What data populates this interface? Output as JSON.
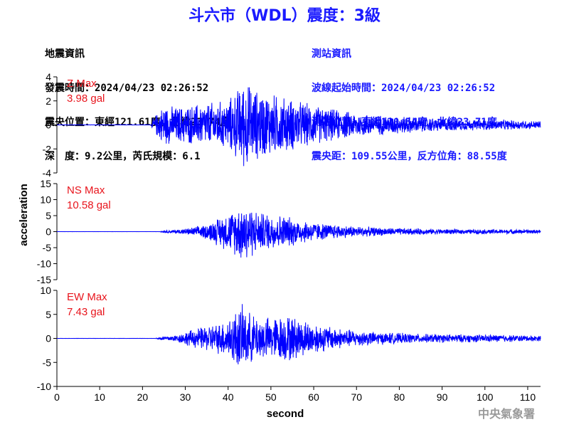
{
  "title": "斗六市（WDL）震度：3級",
  "quake_info": {
    "heading": "地震資訊",
    "time": "發震時間：2024/04/23 02:26:52",
    "epicenter": "震央位置：東經121.61度，北緯23.74度",
    "depth_mag": "深　度：9.2公里，芮氏規模：6.1"
  },
  "station_info": {
    "heading": "測站資訊",
    "wave_start": "波線起始時間：2024/04/23 02:26:52",
    "position": "測站位置：東經120.54度，北緯23.71度",
    "distance": "震央距：109.55公里，反方位角：88.55度"
  },
  "footer": "中央氣象署",
  "chart_data": {
    "type": "line",
    "xlabel": "second",
    "ylabel": "acceleration",
    "xlim": [
      0,
      113
    ],
    "xticks": [
      0,
      10,
      20,
      30,
      40,
      50,
      60,
      70,
      80,
      90,
      100,
      110
    ],
    "line_color": "#0000ff",
    "series": [
      {
        "name": "Z Max",
        "max_label": "3.98 gal",
        "ylim": [
          -4,
          4
        ],
        "yticks": [
          -4,
          -2,
          0,
          2,
          4
        ],
        "envelope": [
          [
            0,
            0.01
          ],
          [
            22,
            0.01
          ],
          [
            22.5,
            0.6
          ],
          [
            25,
            1.8
          ],
          [
            28,
            1.6
          ],
          [
            32,
            1.8
          ],
          [
            36,
            2.0
          ],
          [
            40,
            2.2
          ],
          [
            44,
            3.98
          ],
          [
            46,
            3.2
          ],
          [
            50,
            2.8
          ],
          [
            54,
            2.4
          ],
          [
            58,
            2.0
          ],
          [
            62,
            1.6
          ],
          [
            68,
            1.2
          ],
          [
            75,
            0.9
          ],
          [
            85,
            0.7
          ],
          [
            95,
            0.5
          ],
          [
            105,
            0.45
          ],
          [
            113,
            0.35
          ]
        ]
      },
      {
        "name": "NS Max",
        "max_label": "10.58 gal",
        "ylim": [
          -15,
          15
        ],
        "yticks": [
          -15,
          -10,
          -5,
          0,
          5,
          10,
          15
        ],
        "envelope": [
          [
            0,
            0.02
          ],
          [
            24,
            0.02
          ],
          [
            25,
            0.4
          ],
          [
            30,
            0.9
          ],
          [
            35,
            2.5
          ],
          [
            38,
            5.0
          ],
          [
            41,
            7.0
          ],
          [
            44,
            10.58
          ],
          [
            47,
            6.5
          ],
          [
            50,
            6.0
          ],
          [
            53,
            5.5
          ],
          [
            57,
            4.0
          ],
          [
            62,
            2.8
          ],
          [
            68,
            2.0
          ],
          [
            75,
            1.4
          ],
          [
            85,
            1.0
          ],
          [
            95,
            0.8
          ],
          [
            105,
            0.8
          ],
          [
            113,
            0.6
          ]
        ]
      },
      {
        "name": "EW Max",
        "max_label": "7.43 gal",
        "ylim": [
          -10,
          10
        ],
        "yticks": [
          -10,
          -5,
          0,
          5,
          10
        ],
        "envelope": [
          [
            0,
            0.02
          ],
          [
            23,
            0.02
          ],
          [
            24,
            0.4
          ],
          [
            28,
            0.8
          ],
          [
            31,
            1.8
          ],
          [
            35,
            2.8
          ],
          [
            38,
            3.5
          ],
          [
            40,
            4.5
          ],
          [
            43,
            7.43
          ],
          [
            46,
            5.0
          ],
          [
            50,
            4.6
          ],
          [
            54,
            5.3
          ],
          [
            58,
            4.0
          ],
          [
            62,
            3.0
          ],
          [
            68,
            2.0
          ],
          [
            75,
            1.4
          ],
          [
            85,
            1.0
          ],
          [
            95,
            0.9
          ],
          [
            105,
            0.8
          ],
          [
            113,
            0.6
          ]
        ]
      }
    ]
  }
}
